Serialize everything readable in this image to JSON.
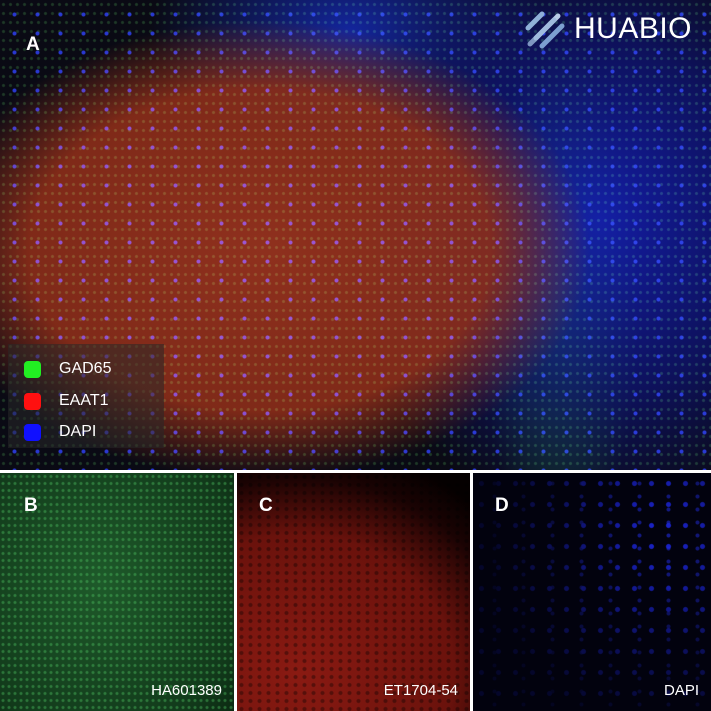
{
  "logo": {
    "text": "HUABIO"
  },
  "panels": {
    "a": {
      "label": "A"
    },
    "b": {
      "label": "B",
      "code": "HA601389"
    },
    "c": {
      "label": "C",
      "code": "ET1704-54"
    },
    "d": {
      "label": "D",
      "code": "DAPI"
    }
  },
  "legend": [
    {
      "label": "GAD65",
      "color": "#22ee22"
    },
    {
      "label": "EAAT1",
      "color": "#ff1010"
    },
    {
      "label": "DAPI",
      "color": "#1010ff"
    }
  ]
}
